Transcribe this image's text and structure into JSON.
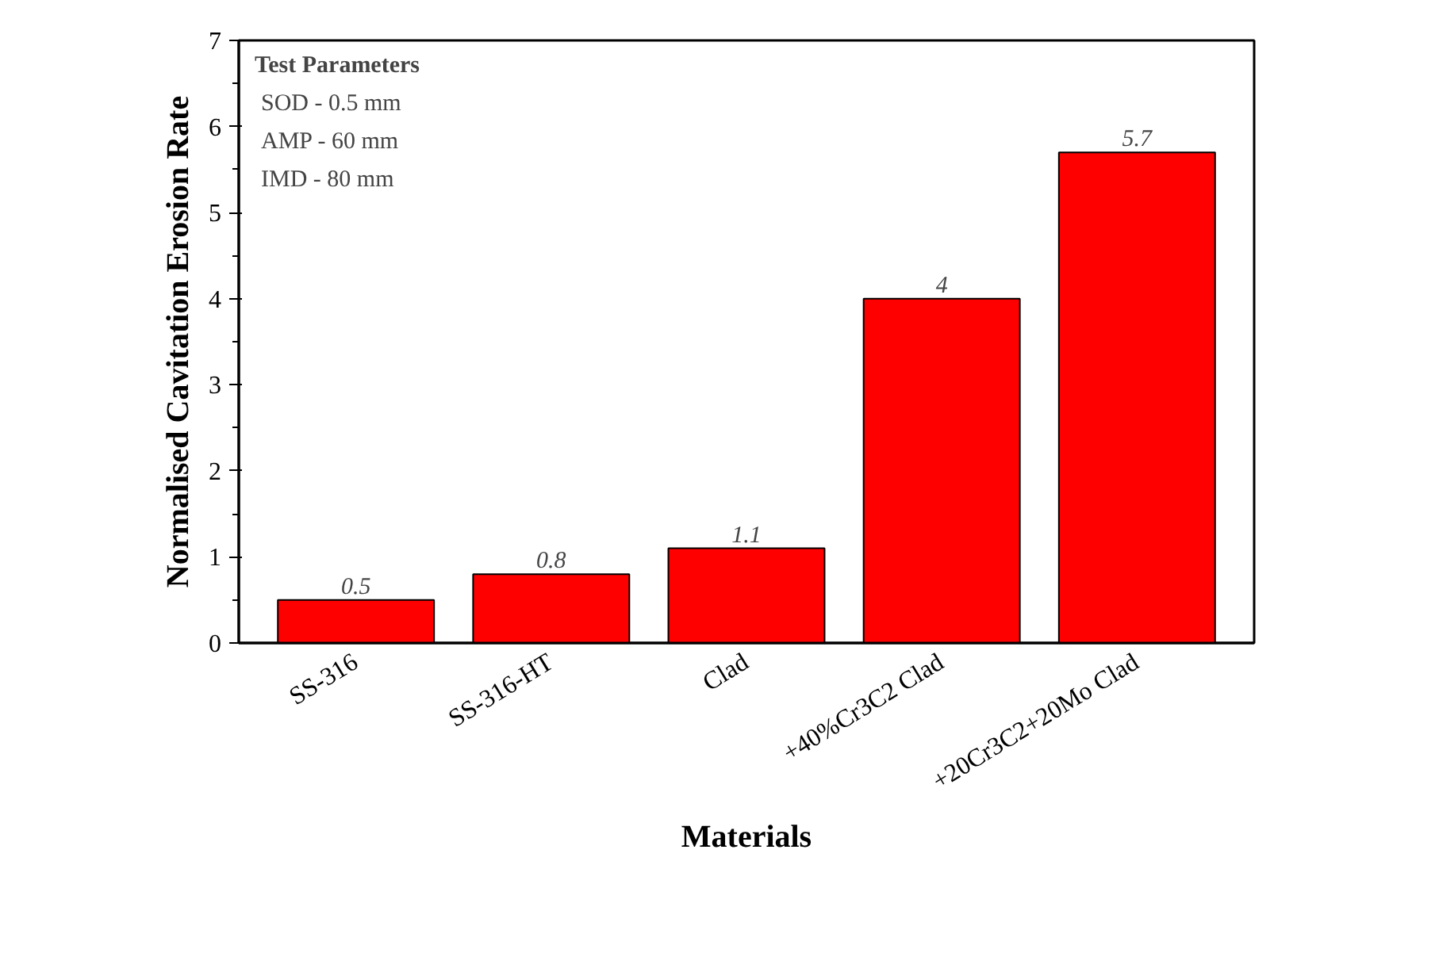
{
  "chart_data": {
    "type": "bar",
    "xlabel": "Materials",
    "ylabel": "Normalised Cavitation Erosion Rate",
    "categories": [
      "SS-316",
      "SS-316-HT",
      "Clad",
      "+40%Cr3C2 Clad",
      "+20Cr3C2+20Mo Clad"
    ],
    "values": [
      0.5,
      0.8,
      1.1,
      4,
      5.7
    ],
    "color": "#ff0000",
    "ylim": [
      0,
      7
    ],
    "yticks": [
      0,
      1,
      2,
      3,
      4,
      5,
      6,
      7
    ],
    "data_labels": true,
    "grid": false,
    "annotations": [
      "Test Parameters",
      "SOD - 0.5 mm",
      "AMP - 60 mm",
      "IMD - 80 mm"
    ]
  }
}
